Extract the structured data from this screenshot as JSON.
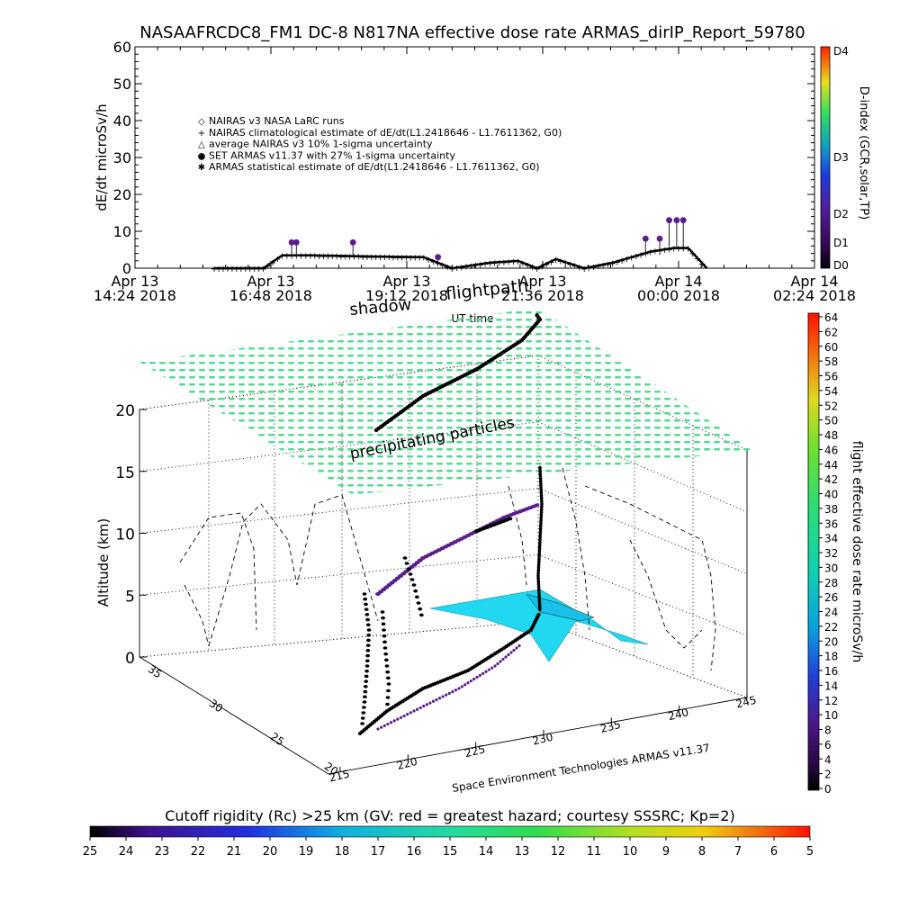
{
  "title": "NASAAFRCDC8_FM1 DC-8   N817NA effective dose rate ARMAS_dirIP_Report_59780",
  "top_panel": {
    "ylabel": "dE/dt microSv/h",
    "y_ticks": [
      "0",
      "10",
      "20",
      "30",
      "40",
      "50",
      "60"
    ],
    "x_ticks": [
      {
        "line1": "Apr 13",
        "line2": "14:24 2018"
      },
      {
        "line1": "Apr 13",
        "line2": "16:48 2018"
      },
      {
        "line1": "Apr 13",
        "line2": "19:12 2018"
      },
      {
        "line1": "Apr 13",
        "line2": "21:36 2018"
      },
      {
        "line1": "Apr 14",
        "line2": "00:00 2018"
      },
      {
        "line1": "Apr 14",
        "line2": "02:24 2018"
      }
    ],
    "xlabel": "UT time",
    "legend": [
      {
        "symbol": "◇",
        "label": "NAIRAS v3 NASA LaRC runs"
      },
      {
        "symbol": "+",
        "label": "NAIRAS climatological estimate of dE/dt(L1.2418646 - L1.7611362, G0)"
      },
      {
        "symbol": "△",
        "label": "average NAIRAS v3 10% 1-sigma uncertainty"
      },
      {
        "symbol": "●",
        "label": "SET ARMAS v11.37 with 27% 1-sigma uncertainty"
      },
      {
        "symbol": "✱",
        "label": "ARMAS statistical estimate of dE/dt(L1.2418646 - L1.7611362, G0)"
      }
    ],
    "dindex": {
      "label": "D-index (GCR,solar,TP)",
      "ticks": [
        "D0",
        "D1",
        "D2",
        "D3",
        "D4"
      ]
    }
  },
  "scene": {
    "altitude_label": "Altitude (km)",
    "z_ticks": [
      "0",
      "5",
      "10",
      "15",
      "20"
    ],
    "lat_ticks": [
      "20",
      "25",
      "30",
      "35"
    ],
    "lon_ticks": [
      "215",
      "220",
      "225",
      "230",
      "235",
      "240",
      "245"
    ],
    "annotation_shadow": "shadow",
    "annotation_flightpath": "flightpath",
    "annotation_precip": "precipitating particles",
    "credit": "Space Environment Technologies ARMAS v11.37"
  },
  "right_colorbar": {
    "label": "flight effective dose rate microSv/h",
    "ticks": [
      "0",
      "2",
      "4",
      "6",
      "8",
      "10",
      "12",
      "14",
      "16",
      "18",
      "20",
      "22",
      "24",
      "26",
      "28",
      "30",
      "32",
      "34",
      "36",
      "38",
      "40",
      "42",
      "44",
      "46",
      "48",
      "50",
      "52",
      "54",
      "56",
      "58",
      "60",
      "62",
      "64"
    ]
  },
  "bottom_colorbar": {
    "label": "Cutoff rigidity (Rc) >25 km (GV: red = greatest hazard; courtesy SSSRC; Kp=2)",
    "ticks": [
      "25",
      "24",
      "23",
      "22",
      "21",
      "20",
      "19",
      "18",
      "17",
      "16",
      "15",
      "14",
      "13",
      "12",
      "11",
      "10",
      "9",
      "8",
      "7",
      "6",
      "5"
    ]
  },
  "colors": {
    "flight_track": "#000000",
    "armas_points": "#5a1f8a",
    "precip_layer": "#3fdc8c",
    "cutoff_region": "#22d8f0"
  },
  "chart_data": [
    {
      "type": "scatter",
      "title": "NASAAFRCDC8_FM1 DC-8   N817NA effective dose rate ARMAS_dirIP_Report_59780",
      "xlabel": "UT time",
      "ylabel": "dE/dt microSv/h",
      "ylim": [
        0,
        60
      ],
      "xlim": [
        "2018-04-13 14:24",
        "2018-04-14 02:24"
      ],
      "grid": false,
      "legend_position": "upper-left",
      "series": [
        {
          "name": "NAIRAS climatological estimate of dE/dt(L1.2418646 - L1.7611362, G0)",
          "x": [
            "2018-04-13 15:48",
            "2018-04-13 16:40",
            "2018-04-13 17:00",
            "2018-04-13 17:30",
            "2018-04-13 18:30",
            "2018-04-13 19:30",
            "2018-04-13 20:00",
            "2018-04-13 20:40",
            "2018-04-13 21:10",
            "2018-04-13 21:30",
            "2018-04-13 21:50",
            "2018-04-13 22:20",
            "2018-04-13 22:50",
            "2018-04-13 23:30",
            "2018-04-13 23:55",
            "2018-04-14 00:10",
            "2018-04-14 00:30"
          ],
          "values": [
            0,
            0,
            3.5,
            3.5,
            3.2,
            3.0,
            0,
            1.5,
            2.0,
            0,
            2.5,
            0,
            1.5,
            4.5,
            5.5,
            5.5,
            0
          ]
        },
        {
          "name": "SET ARMAS v11.37 with 27% 1-sigma uncertainty",
          "x": [
            "2018-04-13 17:10",
            "2018-04-13 17:15",
            "2018-04-13 18:15",
            "2018-04-13 19:45",
            "2018-04-13 23:25",
            "2018-04-13 23:40",
            "2018-04-13 23:50",
            "2018-04-13 23:58",
            "2018-04-14 00:05"
          ],
          "values": [
            7,
            7,
            7,
            3,
            8,
            8,
            13,
            13,
            13
          ]
        }
      ]
    },
    {
      "type": "scatter",
      "xlabel": "",
      "ylabel": "Altitude (km)",
      "zlim": [
        0,
        20
      ],
      "xlim": [
        215,
        245
      ],
      "ylim": [
        20,
        35
      ],
      "series": [
        {
          "name": "flightpath",
          "lon": [
            219,
            222,
            226,
            229,
            230.5,
            232,
            233,
            233.5
          ],
          "lat": [
            22,
            24,
            27,
            30,
            32,
            34,
            35,
            36
          ],
          "alt_km": [
            0,
            3,
            7,
            10,
            11,
            12,
            12,
            12
          ]
        }
      ]
    }
  ]
}
